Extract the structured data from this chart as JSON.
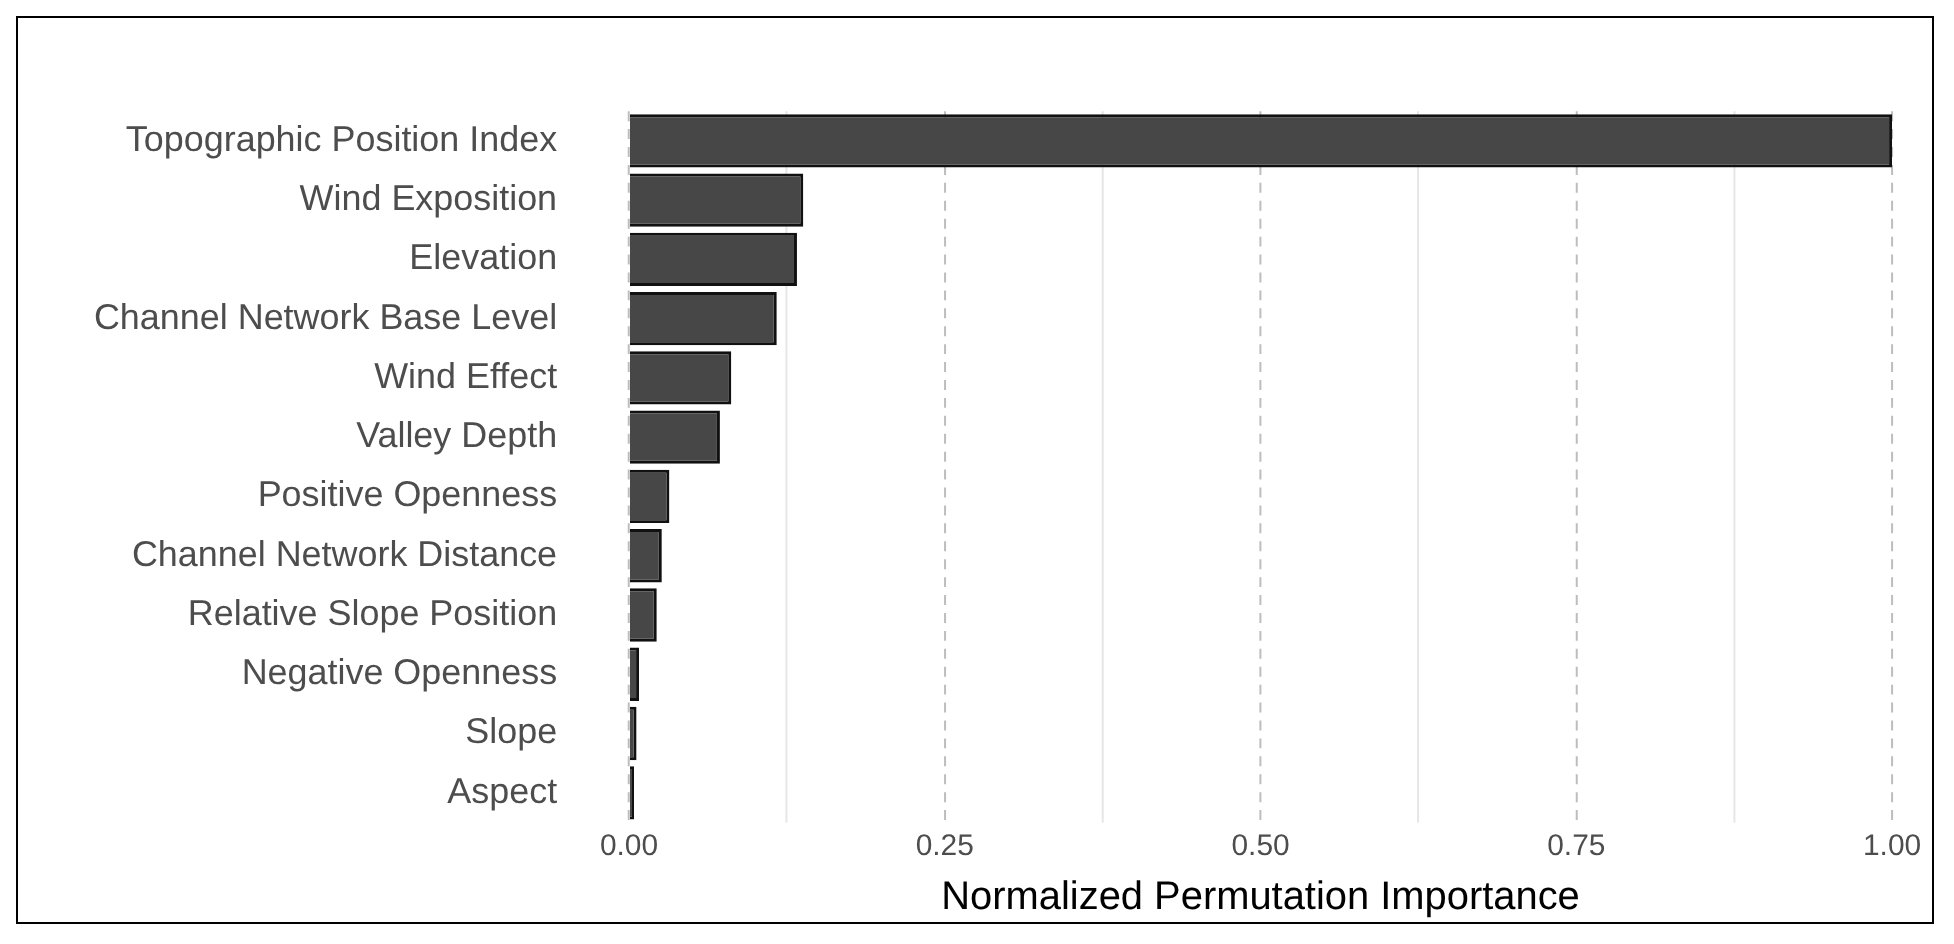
{
  "chart_data": {
    "type": "bar",
    "orientation": "horizontal",
    "xlabel": "Normalized Permutation Importance",
    "categories": [
      "Topographic Position Index",
      "Wind Exposition",
      "Elevation",
      "Channel Network Base Level",
      "Wind Effect",
      "Valley Depth",
      "Positive Openness",
      "Channel Network Distance",
      "Relative Slope Position",
      "Negative Openness",
      "Slope",
      "Aspect"
    ],
    "values": [
      1.0,
      0.138,
      0.133,
      0.117,
      0.081,
      0.072,
      0.032,
      0.026,
      0.022,
      0.008,
      0.006,
      0.004
    ],
    "color": "#474747",
    "xlim": [
      0,
      1
    ],
    "xticks": [
      {
        "value": 0,
        "label": "0.00"
      },
      {
        "value": 0.125,
        "label": null
      },
      {
        "value": 0.25,
        "label": "0.25"
      },
      {
        "value": 0.375,
        "label": null
      },
      {
        "value": 0.5,
        "label": "0.50"
      },
      {
        "value": 0.625,
        "label": null
      },
      {
        "value": 0.75,
        "label": "0.75"
      },
      {
        "value": 0.875,
        "label": null
      },
      {
        "value": 1,
        "label": "1.00"
      }
    ],
    "grid": "x"
  }
}
